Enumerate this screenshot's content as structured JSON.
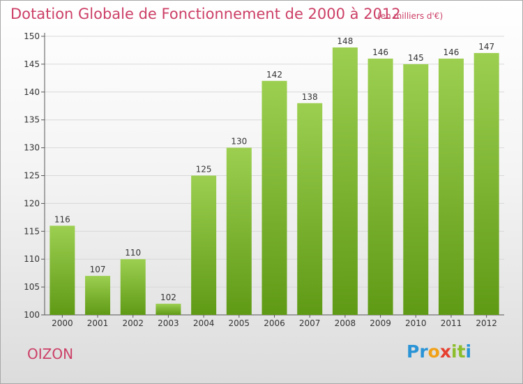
{
  "header": {
    "title": "Dotation Globale de Fonctionnement de 2000 à 2012",
    "subtitle": "(en milliers d'€)"
  },
  "footer": {
    "commune": "OIZON",
    "logo": {
      "p": "P",
      "r": "r",
      "o": "o",
      "x": "x",
      "i1": "i",
      "t": "t",
      "i2": "i"
    }
  },
  "colors": {
    "title": "#cc3f66",
    "bar_top": "#9ccf50",
    "bar_bottom": "#5f9a15",
    "grid": "#d8d8d8"
  },
  "chart_data": {
    "type": "bar",
    "title": "Dotation Globale de Fonctionnement de 2000 à 2012",
    "subtitle": "(en milliers d'€)",
    "categories": [
      "2000",
      "2001",
      "2002",
      "2003",
      "2004",
      "2005",
      "2006",
      "2007",
      "2008",
      "2009",
      "2010",
      "2011",
      "2012"
    ],
    "values": [
      116,
      107,
      110,
      102,
      125,
      130,
      142,
      138,
      148,
      146,
      145,
      146,
      147
    ],
    "ylim": [
      100,
      150
    ],
    "yticks": [
      100,
      105,
      110,
      115,
      120,
      125,
      130,
      135,
      140,
      145,
      150
    ],
    "grid": true,
    "data_labels": true
  }
}
